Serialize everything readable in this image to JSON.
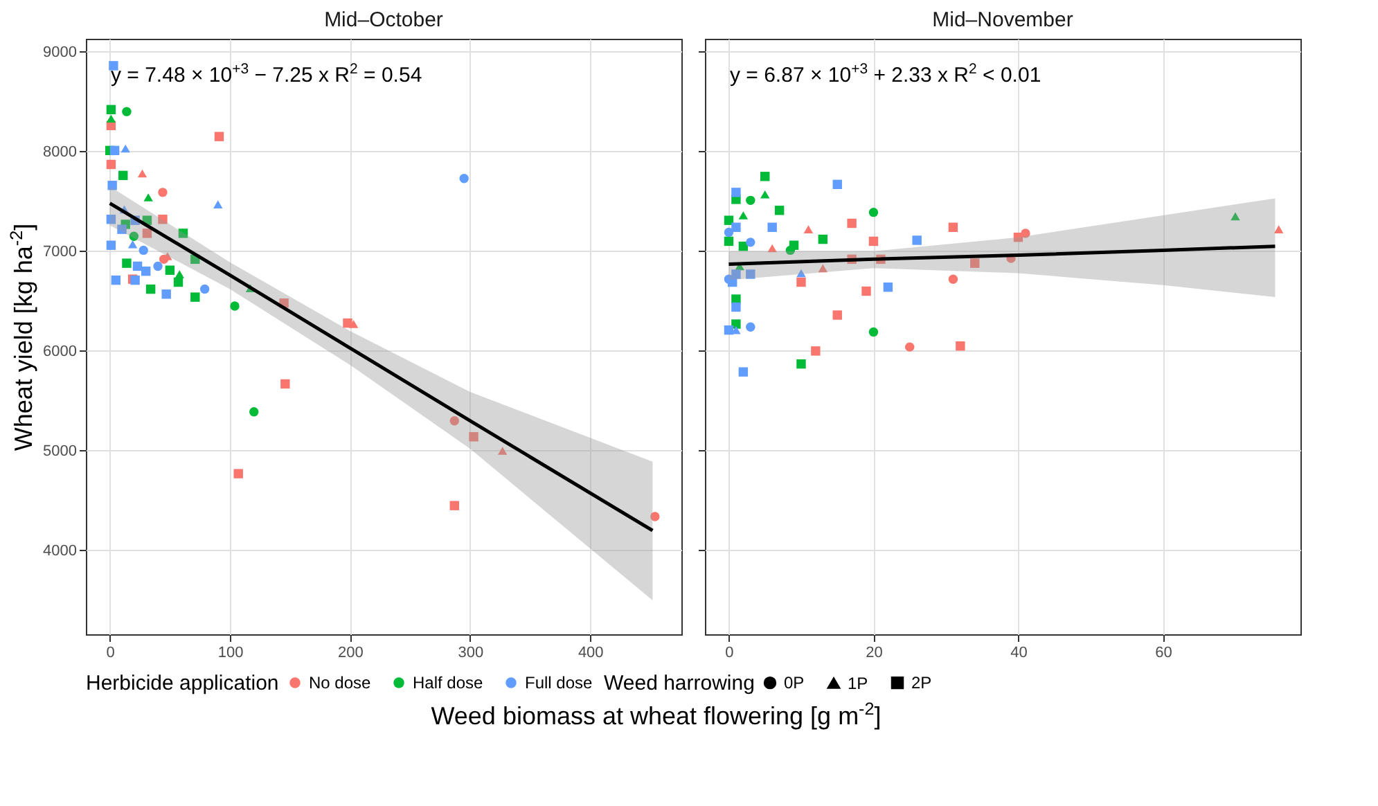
{
  "chart_data": [
    {
      "type": "scatter",
      "title": "Mid–October",
      "xlabel": "Weed biomass at wheat flowering [g m$^{-2}$]",
      "ylabel": "Wheat yield [kg ha$^{-2}$]",
      "legend_title": [
        "Herbicide application",
        "Weed harrowing"
      ],
      "legend": "bottom",
      "grid": true,
      "xlim": [
        -20,
        476
      ],
      "xticks": [
        0,
        100,
        200,
        300,
        400
      ],
      "ylim": [
        3160,
        9130
      ],
      "yticks": [
        4000,
        5000,
        6000,
        7000,
        8000,
        9000
      ],
      "annotations": [
        "y = 7.48 × 10$^{+3}$ − 7.25 x   R$^{2}$ = 0.54",
        "0P",
        "1P",
        "2P"
      ],
      "series": [
        {
          "name": "No dose",
          "color": "#f8766d",
          "marker": "circle",
          "x": [
            44,
            45,
            287,
            454
          ],
          "values": [
            7590,
            6920,
            5300,
            4340
          ]
        },
        {
          "color": "#f8766d",
          "marker": "triangle",
          "x": [
            27,
            48,
            203,
            327
          ],
          "values": [
            7780,
            6950,
            6270,
            5000
          ]
        },
        {
          "color": "#f8766d",
          "marker": "square",
          "x": [
            1,
            91,
            1,
            44,
            31,
            19,
            145,
            198,
            146,
            303,
            107,
            287
          ],
          "values": [
            8260,
            8150,
            7870,
            7320,
            7180,
            6720,
            6480,
            6280,
            5670,
            5140,
            4770,
            4450
          ]
        },
        {
          "name": "Half dose",
          "color": "#00ba38",
          "marker": "circle",
          "x": [
            14,
            20,
            104,
            120
          ],
          "values": [
            8400,
            7150,
            6450,
            5390
          ]
        },
        {
          "color": "#00ba38",
          "marker": "triangle",
          "x": [
            1,
            32,
            58,
            117
          ],
          "values": [
            8330,
            7540,
            6770,
            6630
          ]
        },
        {
          "color": "#00ba38",
          "marker": "square",
          "x": [
            1,
            0,
            11,
            13,
            31,
            61,
            71,
            14,
            50,
            57,
            34,
            71
          ],
          "values": [
            8420,
            8010,
            7760,
            7270,
            7310,
            7180,
            6920,
            6880,
            6810,
            6690,
            6620,
            6540
          ]
        },
        {
          "name": "Full dose",
          "color": "#619cff",
          "marker": "circle",
          "x": [
            28,
            40,
            79,
            295
          ],
          "values": [
            7010,
            6850,
            6620,
            7730
          ]
        },
        {
          "color": "#619cff",
          "marker": "triangle",
          "x": [
            13,
            90,
            12,
            19
          ],
          "values": [
            8030,
            7470,
            7420,
            7070
          ]
        },
        {
          "color": "#619cff",
          "marker": "square",
          "x": [
            3,
            4,
            2,
            1,
            21,
            10,
            1,
            23,
            30,
            5,
            21,
            47
          ],
          "values": [
            8860,
            8010,
            7660,
            7320,
            7310,
            7220,
            7060,
            6850,
            6800,
            6710,
            6710,
            6570
          ]
        },
        {
          "type": "line",
          "color": "#000000",
          "x": [
            0,
            100,
            200,
            300,
            452
          ],
          "values": [
            7480,
            6760,
            6030,
            5300,
            4200
          ],
          "lower": [
            7260,
            6620,
            5860,
            5020,
            3500
          ],
          "upper": [
            7650,
            6890,
            6200,
            5590,
            4890
          ]
        }
      ]
    },
    {
      "type": "scatter",
      "title": "Mid–November",
      "grid": true,
      "tick_labels": "x",
      "xlim": [
        -3.3,
        79
      ],
      "xticks": [
        0,
        20,
        40,
        60
      ],
      "ylim": [
        3160,
        9130
      ],
      "yticks": [
        4000,
        5000,
        6000,
        7000,
        8000,
        9000
      ],
      "annotations": [
        "y = 6.87 × 10$^{+3}$ + 2.33 x   R$^{2}$ < 0.01"
      ],
      "series": [
        {
          "color": "#f8766d",
          "marker": "circle",
          "x": [
            41,
            39,
            31,
            25
          ],
          "values": [
            7180,
            6930,
            6720,
            6040
          ]
        },
        {
          "color": "#f8766d",
          "marker": "triangle",
          "x": [
            11,
            76,
            6,
            13
          ],
          "values": [
            7220,
            7220,
            7030,
            6830
          ]
        },
        {
          "color": "#f8766d",
          "marker": "square",
          "x": [
            17,
            31,
            20,
            40,
            17,
            21,
            34,
            10,
            19,
            15,
            32,
            12
          ],
          "values": [
            7280,
            7240,
            7100,
            7140,
            6920,
            6920,
            6880,
            6690,
            6600,
            6360,
            6050,
            6000
          ]
        },
        {
          "color": "#00ba38",
          "marker": "circle",
          "x": [
            3,
            20,
            8.5,
            20
          ],
          "values": [
            7510,
            7390,
            7010,
            6190
          ]
        },
        {
          "color": "#00ba38",
          "marker": "triangle",
          "x": [
            5,
            2,
            70,
            1.5
          ],
          "values": [
            7570,
            7360,
            7350,
            6850
          ]
        },
        {
          "color": "#00ba38",
          "marker": "square",
          "x": [
            5,
            1,
            7,
            0,
            0,
            13,
            2,
            9,
            1,
            1,
            10
          ],
          "values": [
            7750,
            7520,
            7410,
            7310,
            7100,
            7120,
            7050,
            7060,
            6520,
            6270,
            5870
          ]
        },
        {
          "color": "#619cff",
          "marker": "circle",
          "x": [
            0,
            3,
            0,
            3
          ],
          "values": [
            7190,
            7090,
            6720,
            6240
          ]
        },
        {
          "color": "#619cff",
          "marker": "triangle",
          "x": [
            10,
            1
          ],
          "values": [
            6780,
            6210
          ]
        },
        {
          "color": "#619cff",
          "marker": "square",
          "x": [
            15,
            1,
            1,
            6,
            26,
            1,
            3,
            0.5,
            22,
            1,
            0,
            2
          ],
          "values": [
            7670,
            7590,
            7240,
            7240,
            7110,
            6770,
            6770,
            6690,
            6640,
            6440,
            6210,
            5790
          ]
        },
        {
          "type": "line",
          "color": "#000000",
          "x": [
            0,
            20,
            40,
            60,
            75.5
          ],
          "values": [
            6870,
            6920,
            6960,
            7010,
            7050
          ],
          "lower": [
            6710,
            6830,
            6780,
            6660,
            6540
          ],
          "upper": [
            7000,
            7000,
            7140,
            7360,
            7530
          ]
        }
      ]
    }
  ]
}
